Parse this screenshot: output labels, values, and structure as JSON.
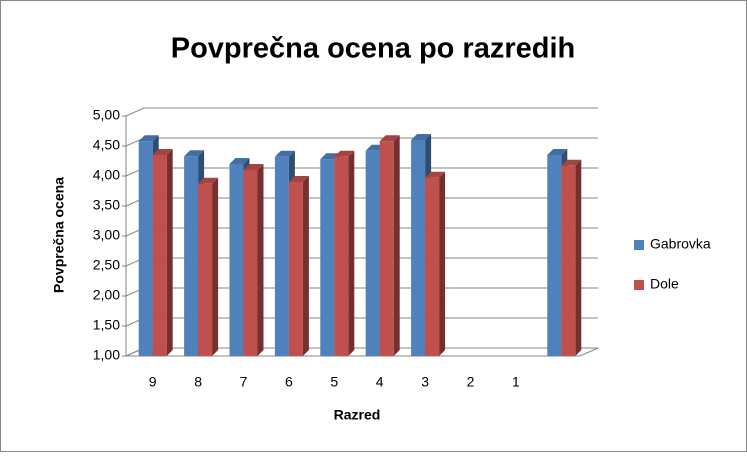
{
  "chart_data": {
    "type": "bar3d",
    "title": "Povprečna ocena po razredih",
    "x_label": "Razred",
    "y_label": "Povprečna ocena",
    "categories": [
      "9",
      "8",
      "7",
      "6",
      "5",
      "4",
      "3",
      "2",
      "1",
      null
    ],
    "series": [
      {
        "name": "Gabrovka",
        "color": "#4f81bd",
        "values": [
          4.58,
          4.33,
          4.2,
          4.32,
          4.28,
          4.42,
          4.6,
          null,
          null,
          4.35
        ]
      },
      {
        "name": "Dole",
        "color": "#c0504d",
        "values": [
          4.35,
          3.87,
          4.1,
          3.9,
          4.32,
          4.58,
          3.97,
          null,
          null,
          4.17
        ]
      }
    ],
    "ylim": [
      1,
      5
    ],
    "yticks": [
      {
        "value": 1,
        "label": "1,00"
      },
      {
        "value": 1.5,
        "label": "1,50"
      },
      {
        "value": 2,
        "label": "2,00"
      },
      {
        "value": 2.5,
        "label": "2,50"
      },
      {
        "value": 3,
        "label": "3,00"
      },
      {
        "value": 3.5,
        "label": "3,50"
      },
      {
        "value": 4,
        "label": "4,00"
      },
      {
        "value": 4.5,
        "label": "4,50"
      },
      {
        "value": 5,
        "label": "5,00"
      }
    ],
    "grid": true,
    "legend": "right"
  }
}
